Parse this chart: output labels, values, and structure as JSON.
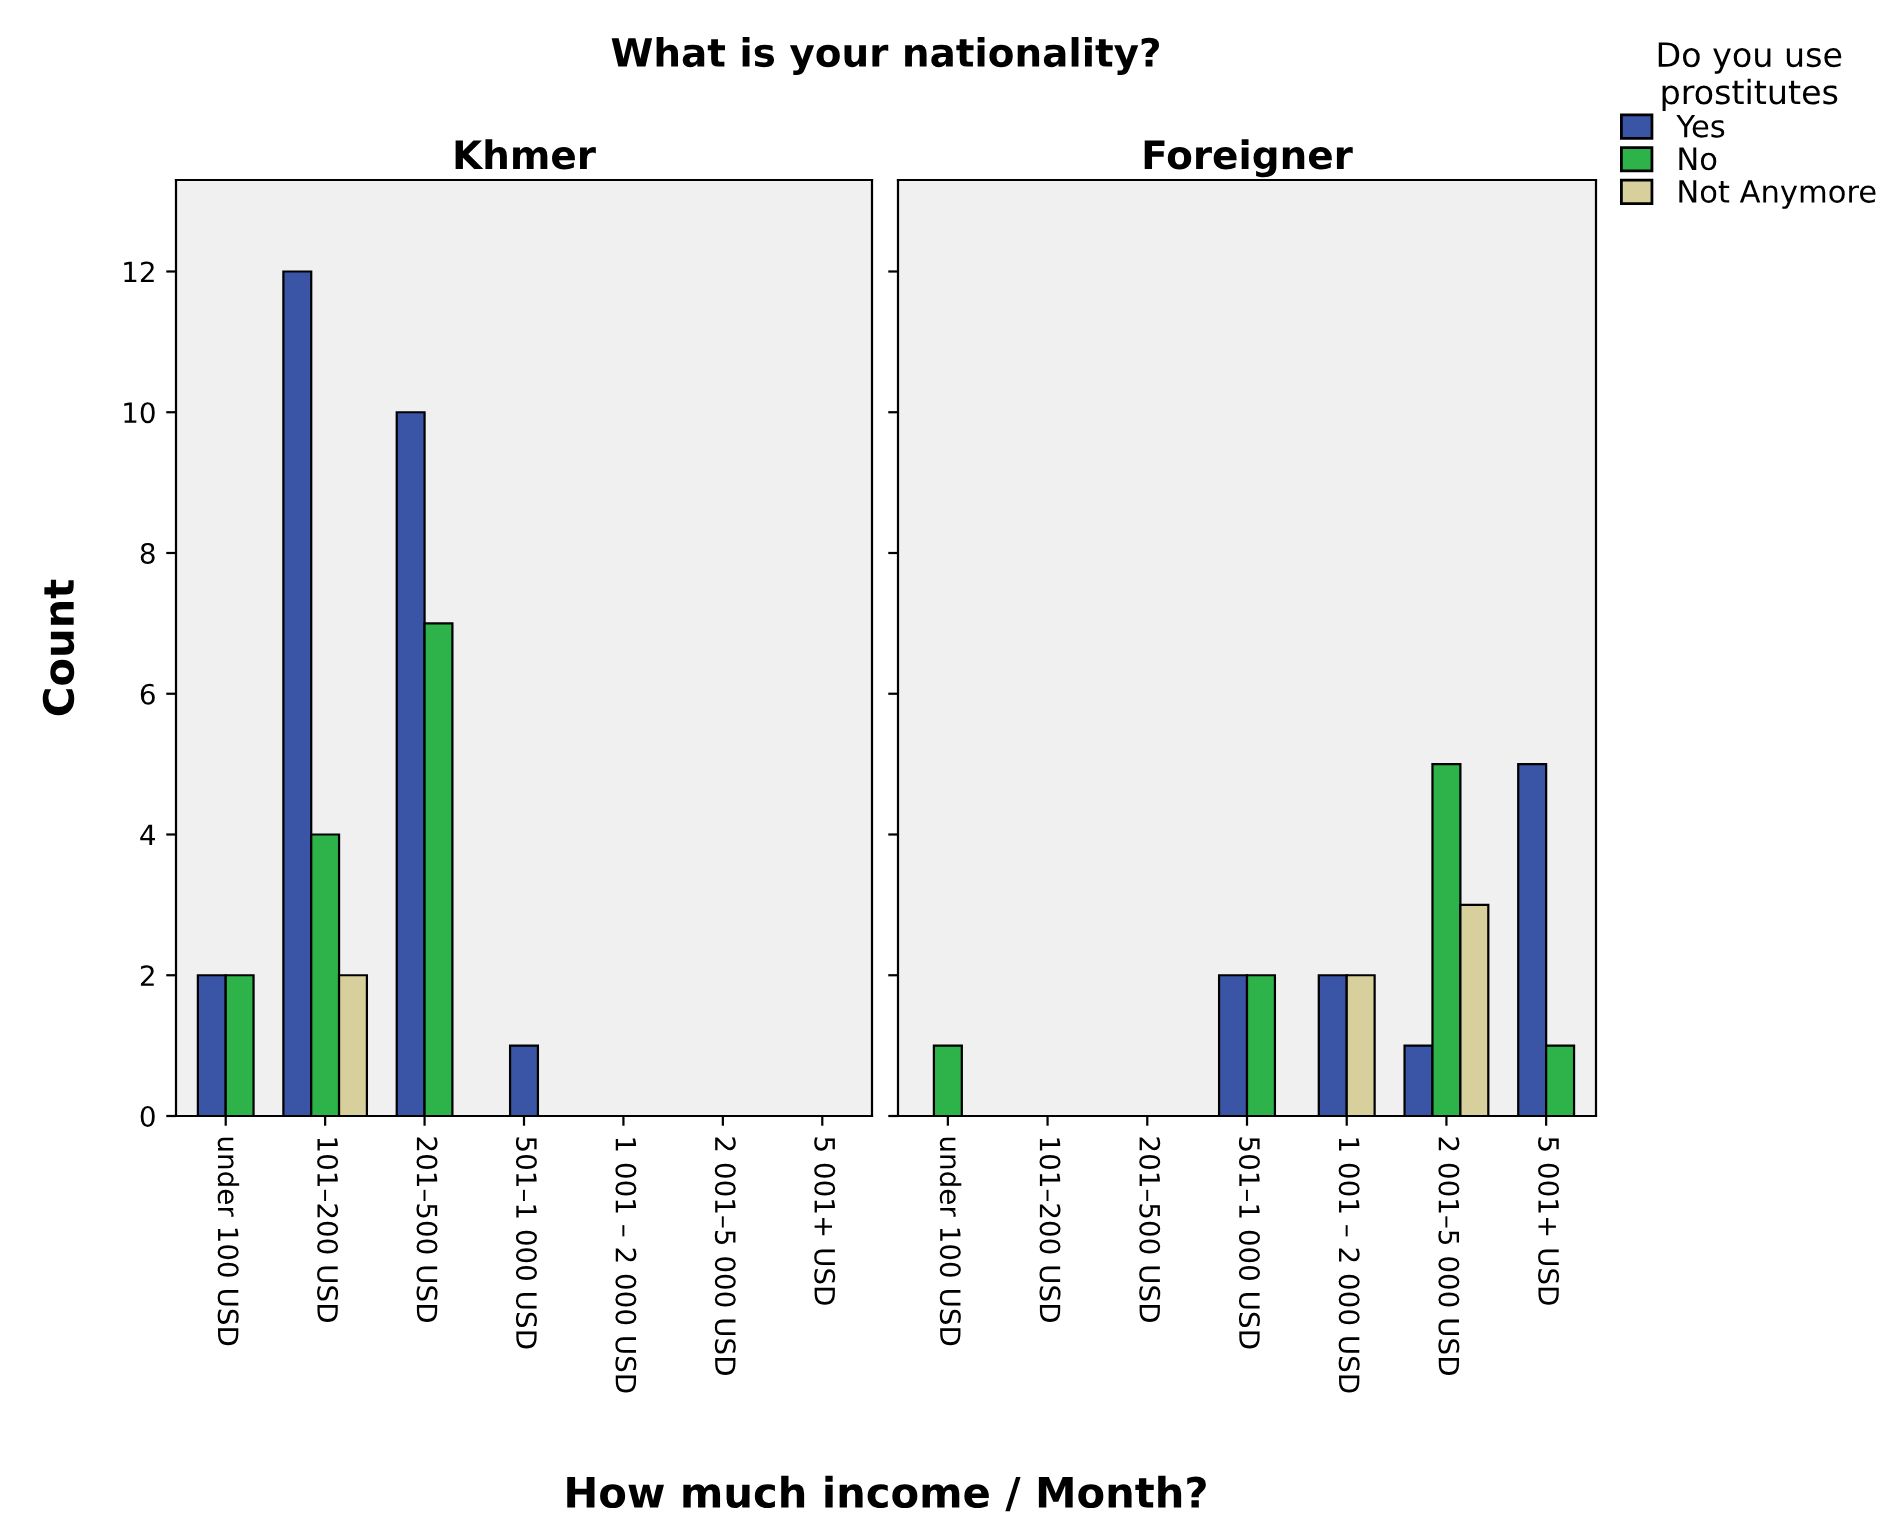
{
  "chart_data": [
    {
      "type": "bar",
      "title": "Khmer",
      "legend_title": "Do you use prostitutes",
      "legend": "top right",
      "ylabel": "Count",
      "xlabel": "How much income / Month?",
      "annotations": [
        "What is your nationality?"
      ],
      "categories": [
        "under 100 USD",
        "101–200 USD",
        "201–500 USD",
        "501–1 000 USD",
        "1 001 – 2 000 USD",
        "2 001–5 000 USD",
        "5 001+ USD"
      ],
      "series": [
        {
          "name": "Yes",
          "color": "#3a55a6",
          "values": [
            2,
            12,
            10,
            1,
            null,
            null,
            null
          ]
        },
        {
          "name": "No",
          "color": "#2db34a",
          "values": [
            2,
            4,
            7,
            null,
            null,
            null,
            null
          ]
        },
        {
          "name": "Not Anymore",
          "color": "#d8d09c",
          "values": [
            null,
            2,
            null,
            null,
            null,
            null,
            null
          ]
        }
      ],
      "ylim": [
        0,
        13.3
      ],
      "yticks": [
        0,
        2,
        4,
        6,
        8,
        10,
        12
      ],
      "grid": false
    },
    {
      "type": "bar",
      "title": "Foreigner",
      "tick_labels": "x",
      "categories": [
        "under 100 USD",
        "101–200 USD",
        "201–500 USD",
        "501–1 000 USD",
        "1 001 – 2 000 USD",
        "2 001–5 000 USD",
        "5 001+ USD"
      ],
      "series": [
        {
          "color": "#3a55a6",
          "values": [
            null,
            null,
            null,
            2,
            2,
            1,
            5
          ]
        },
        {
          "color": "#2db34a",
          "values": [
            1,
            null,
            null,
            2,
            null,
            5,
            1
          ]
        },
        {
          "color": "#d8d09c",
          "values": [
            null,
            null,
            null,
            null,
            2,
            3,
            null
          ]
        }
      ],
      "ylim": [
        0,
        13.3
      ],
      "yticks": [
        0,
        2,
        4,
        6,
        8,
        10,
        12
      ],
      "grid": false
    }
  ]
}
